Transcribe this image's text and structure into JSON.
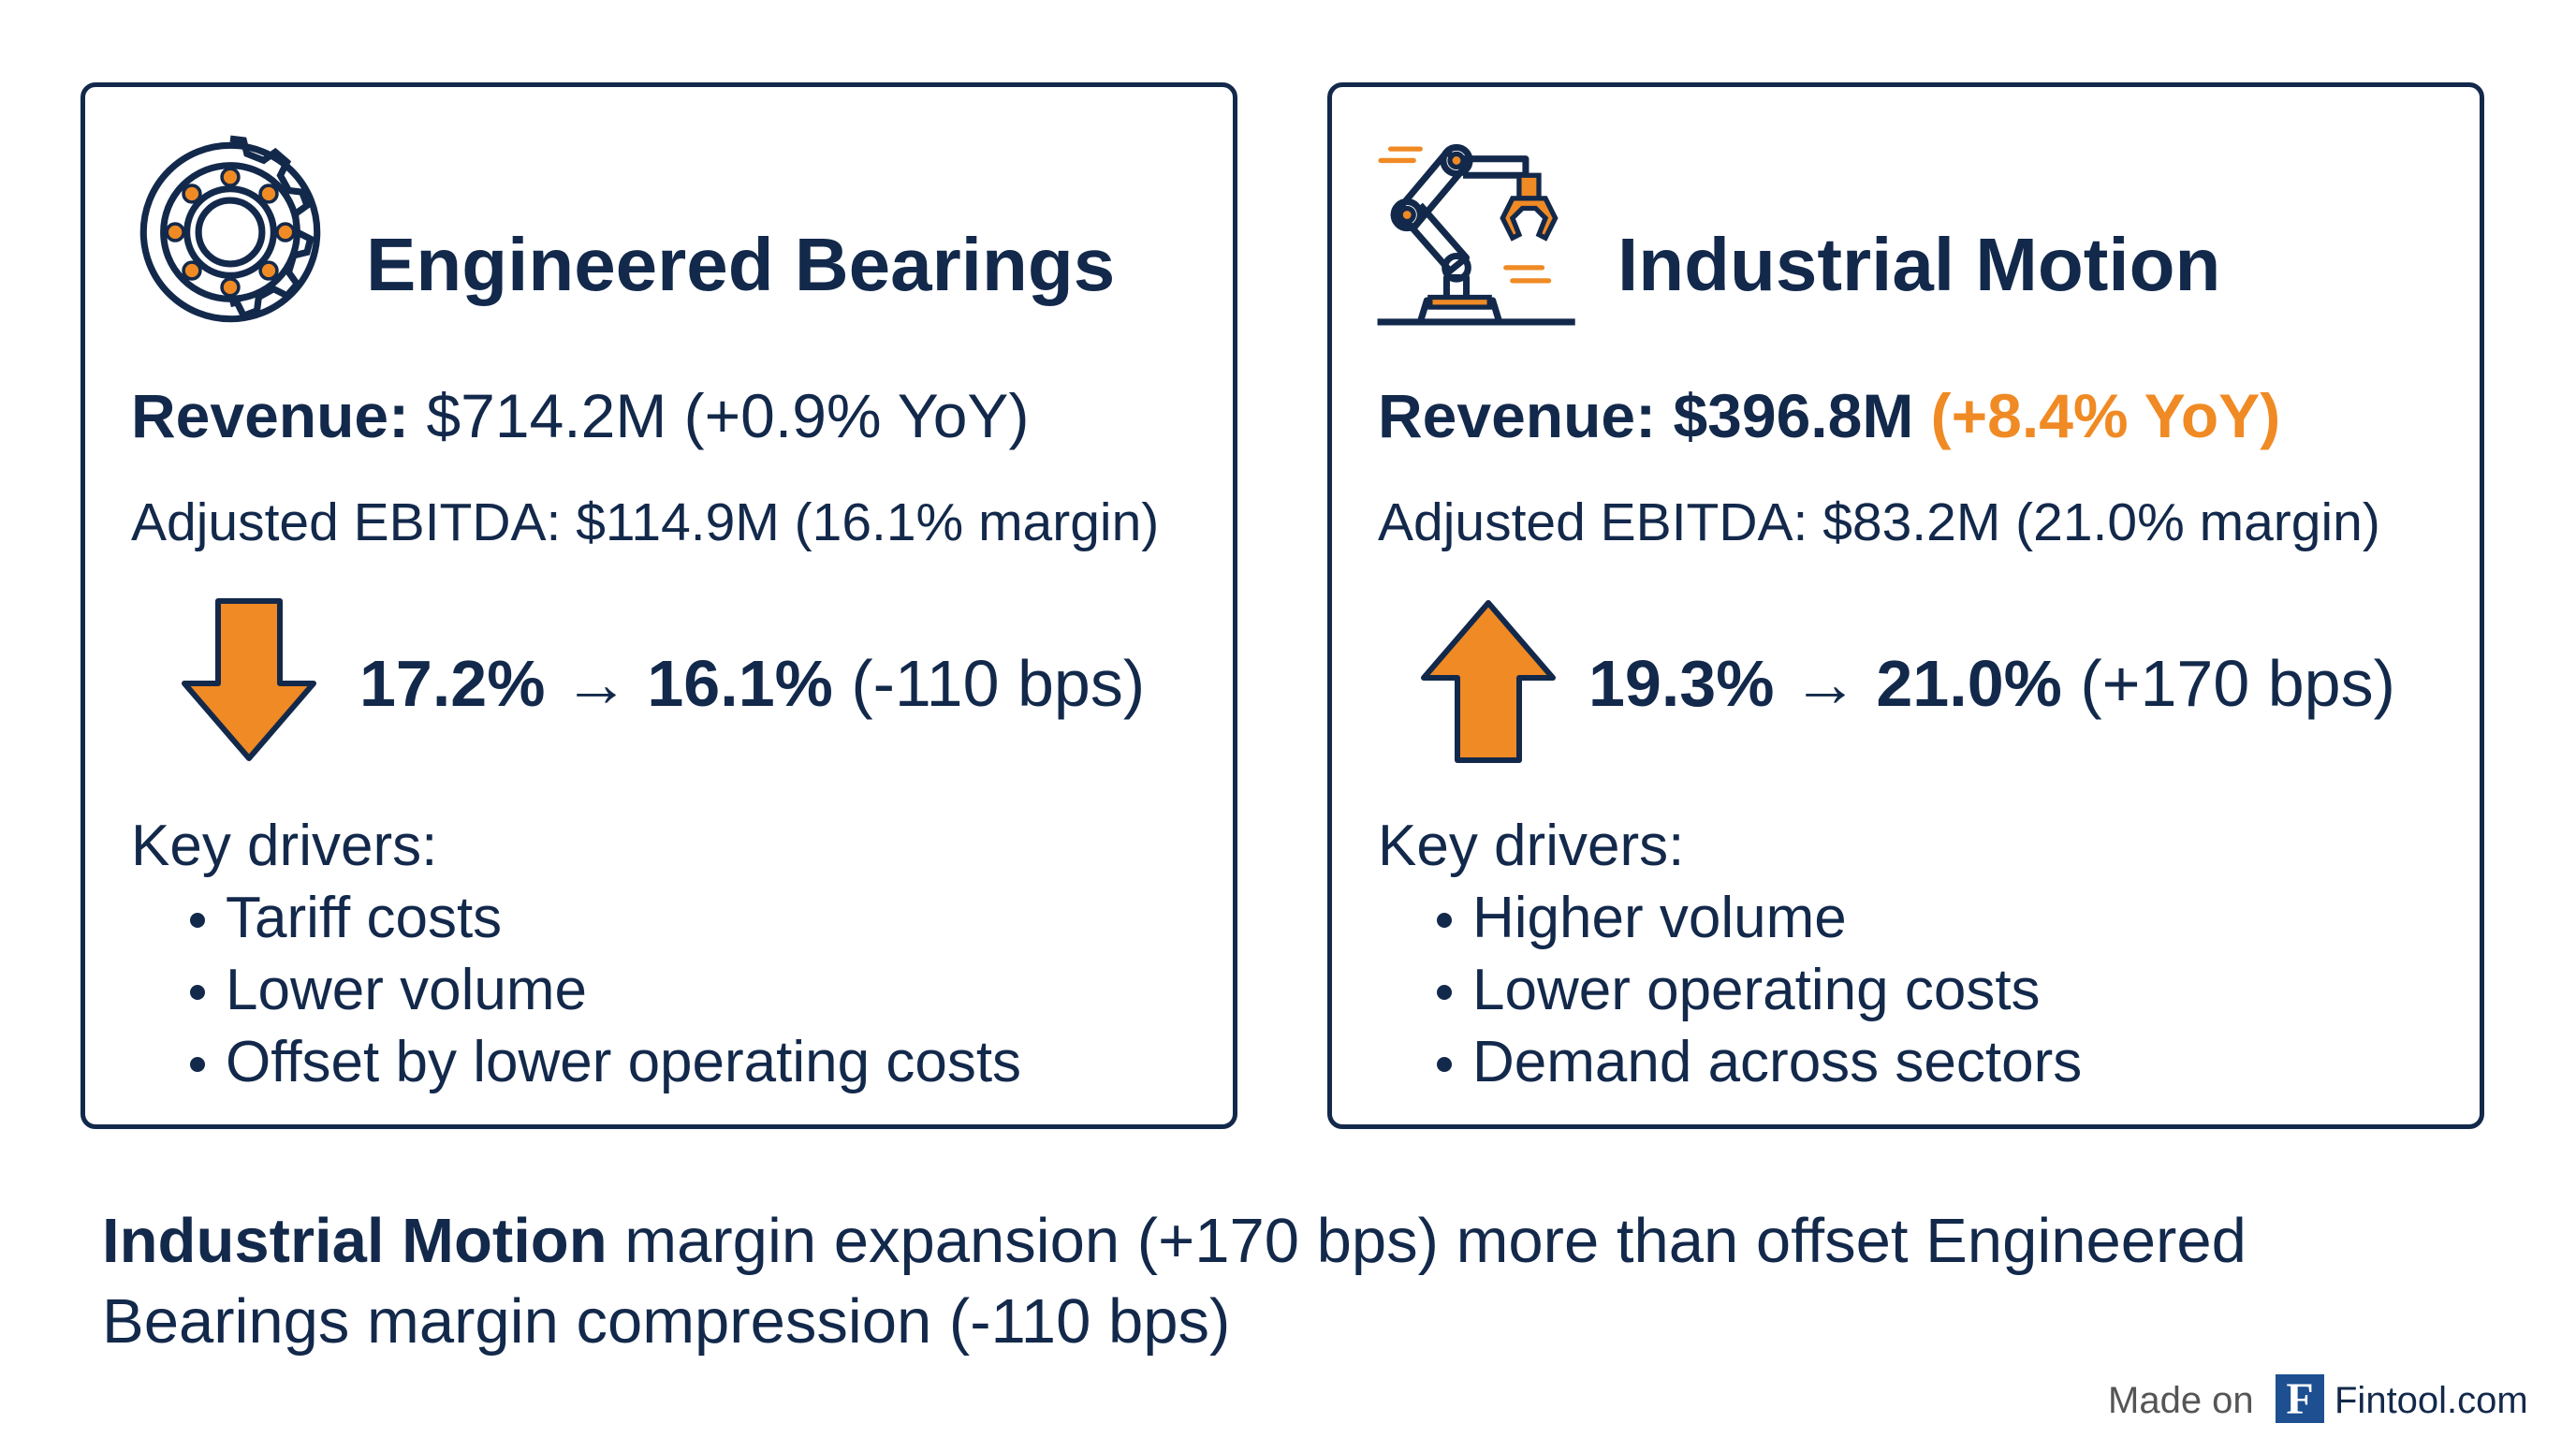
{
  "panels": [
    {
      "title": "Engineered Bearings",
      "revenue_label": "Revenue:",
      "revenue_value": "$714.2M",
      "revenue_change": "(+0.9% YoY)",
      "ebitda": "Adjusted EBITDA: $114.9M (16.1% margin)",
      "margin_shift": "17.2% → 16.1%",
      "margin_change": "(-110 bps)",
      "drivers_label": "Key drivers:",
      "drivers": [
        "Tariff costs",
        "Lower volume",
        "Offset by lower operating costs"
      ]
    },
    {
      "title": "Industrial Motion",
      "revenue_label": "Revenue:",
      "revenue_value": "$396.8M",
      "revenue_change": "(+8.4% YoY)",
      "ebitda": "Adjusted EBITDA: $83.2M (21.0% margin)",
      "margin_shift": "19.3% → 21.0%",
      "margin_change": "(+170 bps)",
      "drivers_label": "Key drivers:",
      "drivers": [
        "Higher volume",
        "Lower operating costs",
        "Demand across sectors"
      ]
    }
  ],
  "summary": {
    "highlight": "Industrial Motion",
    "line1": "margin expansion (+170 bps) more than offset Engineered",
    "line2": "Bearings margin compression (-110 bps)"
  },
  "watermark": {
    "prefix": "Made on",
    "logo": "F",
    "brand": "Fintool.com"
  }
}
